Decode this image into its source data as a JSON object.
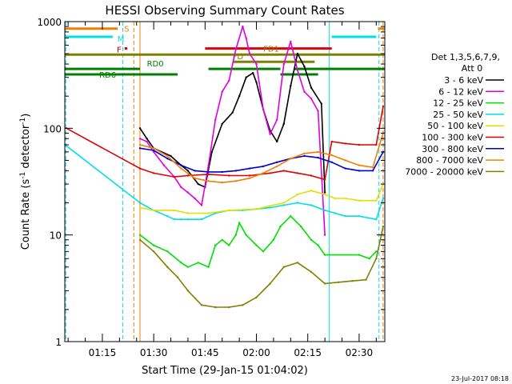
{
  "chart_data": {
    "type": "line",
    "title": "HESSI Observing Summary Count Rates",
    "xlabel": "Start Time (29-Jan-15 01:04:02)",
    "ylabel": "Count Rate (s⁻¹ detector⁻¹)",
    "ylabel_main": "Count Rate (s",
    "ylabel_sup1": "-1",
    "ylabel_mid": " detector",
    "ylabel_sup2": "-1",
    "ylabel_end": ")",
    "yscale": "log",
    "xlim": [
      64.03,
      157.5
    ],
    "ylim": [
      1,
      1000
    ],
    "x_ticks": [
      {
        "minute": 75,
        "label": "01:15"
      },
      {
        "minute": 90,
        "label": "01:30"
      },
      {
        "minute": 105,
        "label": "01:45"
      },
      {
        "minute": 120,
        "label": "02:00"
      },
      {
        "minute": 135,
        "label": "02:15"
      },
      {
        "minute": 150,
        "label": "02:30"
      }
    ],
    "y_ticks": [
      {
        "value": 1,
        "label": "1"
      },
      {
        "value": 10,
        "label": "10"
      },
      {
        "value": 100,
        "label": "100"
      },
      {
        "value": 1000,
        "label": "1000"
      }
    ],
    "legend_header": [
      "Det 1,3,5,6,7,9,",
      "Att 0"
    ],
    "footer_date": "23-Jul-2017 08:18",
    "series": [
      {
        "name": "3 - 6 keV",
        "color": "#000000",
        "points": [
          [
            86,
            100
          ],
          [
            88,
            80
          ],
          [
            90,
            65
          ],
          [
            95,
            55
          ],
          [
            98,
            45
          ],
          [
            100,
            40
          ],
          [
            103,
            30
          ],
          [
            105,
            28
          ],
          [
            107,
            60
          ],
          [
            110,
            110
          ],
          [
            113,
            140
          ],
          [
            115,
            200
          ],
          [
            117,
            300
          ],
          [
            119,
            330
          ],
          [
            120,
            270
          ],
          [
            122,
            150
          ],
          [
            124,
            95
          ],
          [
            126,
            75
          ],
          [
            128,
            110
          ],
          [
            130,
            250
          ],
          [
            132,
            500
          ],
          [
            134,
            380
          ],
          [
            136,
            240
          ],
          [
            139,
            170
          ],
          [
            140,
            25
          ]
        ]
      },
      {
        "name": "6 - 12 keV",
        "color": "#e000e0",
        "points": [
          [
            86,
            80
          ],
          [
            88,
            75
          ],
          [
            90,
            60
          ],
          [
            93,
            45
          ],
          [
            96,
            35
          ],
          [
            98,
            28
          ],
          [
            100,
            25
          ],
          [
            102,
            22
          ],
          [
            104,
            19
          ],
          [
            106,
            45
          ],
          [
            108,
            120
          ],
          [
            110,
            220
          ],
          [
            112,
            280
          ],
          [
            114,
            550
          ],
          [
            116,
            900
          ],
          [
            117,
            700
          ],
          [
            118,
            500
          ],
          [
            120,
            400
          ],
          [
            122,
            150
          ],
          [
            124,
            88
          ],
          [
            126,
            120
          ],
          [
            128,
            400
          ],
          [
            130,
            650
          ],
          [
            132,
            350
          ],
          [
            134,
            220
          ],
          [
            136,
            190
          ],
          [
            138,
            145
          ],
          [
            140,
            10
          ]
        ]
      },
      {
        "name": "12 - 25 keV",
        "color": "#00e000",
        "points": [
          [
            86,
            10
          ],
          [
            90,
            8
          ],
          [
            94,
            7
          ],
          [
            98,
            5.5
          ],
          [
            100,
            5
          ],
          [
            103,
            5.5
          ],
          [
            106,
            5
          ],
          [
            108,
            8
          ],
          [
            110,
            9
          ],
          [
            112,
            8
          ],
          [
            114,
            10
          ],
          [
            115,
            13
          ],
          [
            117,
            10
          ],
          [
            120,
            8
          ],
          [
            122,
            7
          ],
          [
            125,
            9
          ],
          [
            127,
            12
          ],
          [
            130,
            15
          ],
          [
            133,
            12
          ],
          [
            136,
            9
          ],
          [
            138,
            8
          ],
          [
            140,
            6.5
          ],
          [
            150,
            6.5
          ],
          [
            153,
            6
          ],
          [
            155,
            7
          ]
        ]
      },
      {
        "name": "25 - 50 keV",
        "color": "#00e0e0",
        "points": [
          [
            64.1,
            70
          ],
          [
            86,
            20
          ],
          [
            90,
            17
          ],
          [
            94,
            15
          ],
          [
            96,
            14
          ],
          [
            98,
            14
          ],
          [
            100,
            14
          ],
          [
            104,
            14
          ],
          [
            108,
            16
          ],
          [
            112,
            17
          ],
          [
            116,
            17
          ],
          [
            120,
            17.5
          ],
          [
            124,
            18
          ],
          [
            128,
            19
          ],
          [
            132,
            20
          ],
          [
            136,
            19
          ],
          [
            140,
            17
          ],
          [
            143,
            16
          ],
          [
            146,
            15
          ],
          [
            150,
            15
          ],
          [
            155,
            14
          ],
          [
            157,
            22
          ]
        ]
      },
      {
        "name": "50 - 100 keV",
        "color": "#e0e000",
        "points": [
          [
            86,
            18
          ],
          [
            90,
            17
          ],
          [
            96,
            17
          ],
          [
            100,
            16
          ],
          [
            106,
            16
          ],
          [
            112,
            17
          ],
          [
            120,
            17.5
          ],
          [
            128,
            20
          ],
          [
            132,
            24
          ],
          [
            136,
            26
          ],
          [
            140,
            24
          ],
          [
            143,
            22
          ],
          [
            146,
            22
          ],
          [
            150,
            21
          ],
          [
            155,
            21
          ],
          [
            157,
            30
          ]
        ]
      },
      {
        "name": "100 - 300 keV",
        "color": "#e00000",
        "points": [
          [
            64.5,
            100
          ],
          [
            86,
            42
          ],
          [
            90,
            38
          ],
          [
            96,
            35
          ],
          [
            100,
            36
          ],
          [
            106,
            37
          ],
          [
            112,
            36
          ],
          [
            118,
            36
          ],
          [
            124,
            38
          ],
          [
            128,
            40
          ],
          [
            132,
            38
          ],
          [
            136,
            36
          ],
          [
            140,
            33
          ],
          [
            142,
            75
          ],
          [
            146,
            72
          ],
          [
            150,
            70
          ],
          [
            155,
            70
          ],
          [
            157,
            160
          ]
        ]
      },
      {
        "name": "300 - 800 keV",
        "color": "#0000d0",
        "points": [
          [
            86,
            65
          ],
          [
            90,
            62
          ],
          [
            94,
            52
          ],
          [
            98,
            45
          ],
          [
            102,
            40
          ],
          [
            106,
            39
          ],
          [
            110,
            39
          ],
          [
            114,
            40
          ],
          [
            118,
            42
          ],
          [
            122,
            44
          ],
          [
            126,
            48
          ],
          [
            130,
            52
          ],
          [
            134,
            55
          ],
          [
            138,
            53
          ],
          [
            142,
            48
          ],
          [
            146,
            42
          ],
          [
            150,
            40
          ],
          [
            154,
            40
          ],
          [
            157,
            60
          ]
        ]
      },
      {
        "name": "800 - 7000 keV",
        "color": "#f08000",
        "points": [
          [
            86,
            70
          ],
          [
            90,
            65
          ],
          [
            94,
            55
          ],
          [
            98,
            42
          ],
          [
            102,
            34
          ],
          [
            106,
            32
          ],
          [
            110,
            31
          ],
          [
            114,
            32
          ],
          [
            118,
            34
          ],
          [
            122,
            38
          ],
          [
            126,
            44
          ],
          [
            130,
            52
          ],
          [
            134,
            58
          ],
          [
            138,
            60
          ],
          [
            142,
            56
          ],
          [
            146,
            50
          ],
          [
            150,
            45
          ],
          [
            154,
            43
          ],
          [
            157,
            90
          ]
        ]
      },
      {
        "name": "7000 - 20000 keV",
        "color": "#808000",
        "points": [
          [
            86,
            9
          ],
          [
            90,
            7
          ],
          [
            94,
            5
          ],
          [
            97,
            4
          ],
          [
            100,
            3
          ],
          [
            104,
            2.2
          ],
          [
            108,
            2.1
          ],
          [
            112,
            2.1
          ],
          [
            116,
            2.2
          ],
          [
            120,
            2.6
          ],
          [
            124,
            3.5
          ],
          [
            128,
            5
          ],
          [
            132,
            5.5
          ],
          [
            136,
            4.5
          ],
          [
            140,
            3.5
          ],
          [
            144,
            3.6
          ],
          [
            148,
            3.7
          ],
          [
            152,
            3.8
          ],
          [
            155,
            6
          ],
          [
            157,
            12
          ]
        ]
      }
    ],
    "segments": [
      {
        "label": "S",
        "color": "#f08000",
        "y": 860,
        "spans": [
          [
            64.1,
            79.5
          ],
          [
            155.5,
            157.5
          ]
        ]
      },
      {
        "label": "M",
        "color": "#00e0e0",
        "y": 720,
        "spans": [
          [
            64.1,
            78
          ],
          [
            142,
            155
          ]
        ]
      },
      {
        "label": "F",
        "color": "#e00000",
        "y": 560,
        "spans": [
          [
            81.5,
            82.3
          ],
          [
            105,
            142
          ]
        ]
      },
      {
        "label": "FD1",
        "color": "#808000",
        "y": 490,
        "spans": [
          [
            64.1,
            157.5
          ]
        ]
      },
      {
        "label": "RD0",
        "color": "#008000",
        "y": 360,
        "spans": [
          [
            64.1,
            86
          ],
          [
            106,
            127
          ],
          [
            131,
            157.5
          ]
        ]
      },
      {
        "label": "RD6",
        "color": "#008000",
        "y": 320,
        "spans": [
          [
            64.1,
            97
          ],
          [
            127,
            138
          ]
        ]
      },
      {
        "label": "FD",
        "color": "#808000",
        "y": 420,
        "spans": [
          [
            113,
            137
          ]
        ]
      }
    ],
    "vlines": [
      {
        "minute": 64.3,
        "color": "#00e0e0",
        "dash": true
      },
      {
        "minute": 81,
        "color": "#00e0e0",
        "dash": true
      },
      {
        "minute": 84.2,
        "color": "#f08000",
        "dash": true
      },
      {
        "minute": 86,
        "color": "#f08000",
        "dash": false
      },
      {
        "minute": 141.3,
        "color": "#00e0e0",
        "dash": false
      },
      {
        "minute": 155.8,
        "color": "#00e0e0",
        "dash": true
      },
      {
        "minute": 157,
        "color": "#f08000",
        "dash": true
      }
    ]
  }
}
